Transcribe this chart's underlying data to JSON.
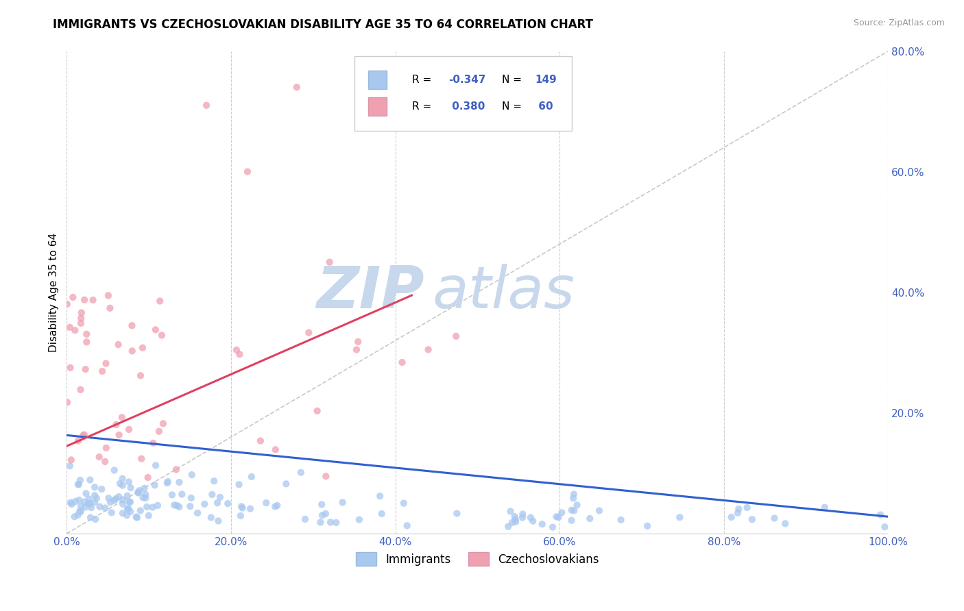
{
  "title": "IMMIGRANTS VS CZECHOSLOVAKIAN DISABILITY AGE 35 TO 64 CORRELATION CHART",
  "source": "Source: ZipAtlas.com",
  "ylabel": "Disability Age 35 to 64",
  "xlim": [
    0.0,
    1.0
  ],
  "ylim": [
    0.0,
    0.8
  ],
  "xticks": [
    0.0,
    0.2,
    0.4,
    0.6,
    0.8,
    1.0
  ],
  "xticklabels": [
    "0.0%",
    "20.0%",
    "40.0%",
    "60.0%",
    "80.0%",
    "100.0%"
  ],
  "yticks_right": [
    0.2,
    0.4,
    0.6,
    0.8
  ],
  "yticklabels_right": [
    "20.0%",
    "40.0%",
    "60.0%",
    "80.0%"
  ],
  "scatter_color_blue": "#a8c8f0",
  "scatter_color_pink": "#f0a0b0",
  "trend_color_blue": "#3060d0",
  "trend_color_pink": "#e04060",
  "watermark_zip": "ZIP",
  "watermark_atlas": "atlas",
  "watermark_color": "#c8d8ec",
  "background_color": "#ffffff",
  "grid_color": "#c8c8c8",
  "title_fontsize": 12,
  "axis_label_fontsize": 11,
  "tick_fontsize": 11,
  "tick_color": "#4060c0",
  "blue_trend_x0": 0.0,
  "blue_trend_y0": 0.163,
  "blue_trend_x1": 1.0,
  "blue_trend_y1": 0.028,
  "pink_trend_x0": 0.0,
  "pink_trend_y0": 0.145,
  "pink_trend_x1": 0.42,
  "pink_trend_y1": 0.395
}
